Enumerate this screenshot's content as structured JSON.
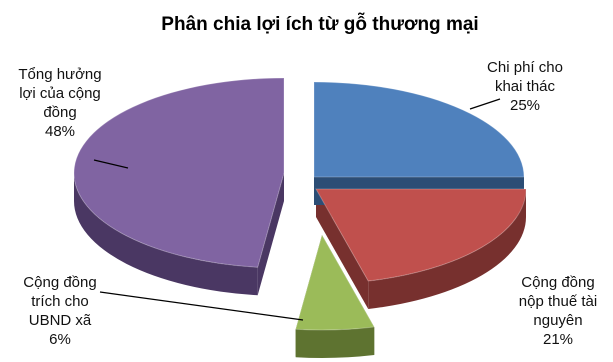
{
  "chart_data": {
    "type": "pie",
    "title": "Phân chia lợi ích từ gỗ thương mại",
    "slices": [
      {
        "label_lines": [
          "Chi phí cho",
          "khai thác"
        ],
        "percent_text": "25%",
        "value": 25,
        "top_color": "#4f81bd",
        "side_color": "#2c4d75"
      },
      {
        "label_lines": [
          "Cộng đồng",
          "nộp thuế tài",
          "nguyên"
        ],
        "percent_text": "21%",
        "value": 21,
        "top_color": "#c0504d",
        "side_color": "#77302e"
      },
      {
        "label_lines": [
          "Cộng đồng",
          "trích cho",
          "UBND xã"
        ],
        "percent_text": "6%",
        "value": 6,
        "top_color": "#9bbb59",
        "side_color": "#5e7330"
      },
      {
        "label_lines": [
          "Tổng hưởng",
          "lợi của cộng",
          "đồng"
        ],
        "percent_text": "48%",
        "value": 48,
        "top_color": "#8064a2",
        "side_color": "#4a3763"
      }
    ]
  }
}
